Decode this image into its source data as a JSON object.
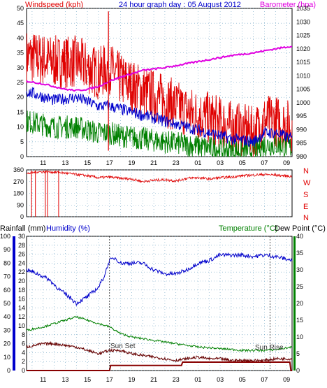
{
  "colors": {
    "windspeed": "#e00000",
    "gust_avg": "#0000cc",
    "wind_avg": "#008000",
    "barometer": "#e000e0",
    "direction": "#e00000",
    "humidity": "#0000cc",
    "temperature": "#008000",
    "dewpoint": "#660000",
    "rainfall": "#880000",
    "title": "#0000cc",
    "grid": "#6aa0c0",
    "rain_axis": "#0000cc",
    "temp_axis": "#008000"
  },
  "header": {
    "left": "Windspeed (kph)",
    "center": "24 hour graph day : 05 August 2012",
    "right": "Barometer (hpa)"
  },
  "direction_letters": [
    "N",
    "W",
    "S",
    "E",
    "N"
  ],
  "bottom_header": {
    "rainfall": "Rainfall (mm)",
    "humidity": "Humidity (%)",
    "temperature": "Temperature (°C)",
    "dewpoint": "Dew Point (°C)"
  },
  "annotations": {
    "sunset": "Sun Set",
    "sunrise": "Sun Rise"
  },
  "chart_data": [
    {
      "type": "line",
      "name": "wind_barometer",
      "x_ticks": [
        "11",
        "13",
        "15",
        "17",
        "19",
        "21",
        "23",
        "01",
        "03",
        "05",
        "07",
        "09"
      ],
      "x_range_hours": [
        9.5,
        33.5
      ],
      "left_axis": {
        "label": "Windspeed (kph)",
        "ylim": [
          0,
          50
        ],
        "ticks": [
          0,
          5,
          10,
          15,
          20,
          25,
          30,
          35,
          40,
          45,
          50
        ]
      },
      "right_axis": {
        "label": "Barometer (hpa)",
        "ylim": [
          980,
          1035
        ],
        "ticks": [
          980,
          985,
          990,
          995,
          1000,
          1005,
          1010,
          1015,
          1020,
          1025,
          1030,
          1035
        ]
      },
      "series": [
        {
          "key": "gust",
          "hours": [
            9.5,
            12,
            14,
            16,
            17,
            18,
            20,
            22,
            24,
            26,
            28,
            30,
            31,
            32,
            33.5
          ],
          "values": [
            34,
            32,
            32,
            28,
            30,
            26,
            22,
            19,
            15,
            13,
            10,
            8,
            12,
            12,
            10
          ]
        },
        {
          "key": "gust_avg",
          "hours": [
            9.5,
            12,
            14,
            16,
            17,
            18,
            20,
            22,
            24,
            26,
            28,
            30,
            31,
            32,
            33.5
          ],
          "values": [
            22,
            19,
            20,
            17,
            17,
            16,
            14,
            12,
            10,
            8,
            6,
            5,
            8,
            8,
            6
          ]
        },
        {
          "key": "wind_avg",
          "hours": [
            9.5,
            12,
            14,
            16,
            17,
            18,
            20,
            22,
            24,
            26,
            28,
            30,
            31,
            32,
            33.5
          ],
          "values": [
            12,
            10,
            10,
            8,
            8,
            7,
            6,
            5,
            4,
            3,
            2,
            2,
            4,
            4,
            3
          ]
        },
        {
          "key": "barometer",
          "hours": [
            9.5,
            11,
            13,
            14,
            15,
            16,
            17,
            18,
            20,
            22,
            24,
            26,
            28,
            30,
            32,
            33.5
          ],
          "values": [
            1008,
            1007,
            1005,
            1004.5,
            1005,
            1006,
            1008,
            1009.5,
            1012,
            1013,
            1014.5,
            1016,
            1017.5,
            1018.5,
            1020,
            1021
          ]
        }
      ]
    },
    {
      "type": "line",
      "name": "wind_direction",
      "ylim": [
        0,
        360
      ],
      "ticks": [
        0,
        90,
        180,
        270,
        360
      ],
      "series": [
        {
          "key": "direction",
          "hours": [
            9.5,
            10.5,
            11.5,
            12.5,
            13.5,
            15,
            16,
            17,
            18,
            19,
            20,
            21,
            22,
            23,
            24,
            25,
            26,
            27,
            28,
            29,
            30,
            31,
            32,
            33.5
          ],
          "values": [
            330,
            345,
            345,
            340,
            330,
            315,
            300,
            305,
            295,
            290,
            270,
            280,
            285,
            275,
            295,
            300,
            290,
            300,
            305,
            315,
            320,
            325,
            320,
            310
          ]
        }
      ]
    },
    {
      "type": "line",
      "name": "temp_humidity_rain",
      "rain_axis": {
        "label": "Rainfall (mm)",
        "ylim": [
          0,
          100
        ],
        "ticks": [
          0,
          10,
          20,
          30,
          40,
          50,
          60,
          70,
          80,
          90,
          100
        ]
      },
      "humidity_axis": {
        "label": "Humidity (%)",
        "ylim": [
          0,
          30
        ],
        "ticks": [
          0,
          2,
          4,
          6,
          8,
          10,
          12,
          14,
          16,
          18,
          20,
          22,
          24,
          26,
          28,
          30
        ]
      },
      "temp_axis": {
        "label": "Temperature (°C)",
        "ylim": [
          0,
          40
        ],
        "ticks": [
          0,
          5,
          10,
          15,
          20,
          25,
          30,
          35,
          40
        ]
      },
      "series": [
        {
          "key": "humidity",
          "hours": [
            9.5,
            10.5,
            11.5,
            12.5,
            13.5,
            14,
            15,
            16,
            16.5,
            17,
            17.5,
            18,
            19,
            20,
            21,
            22,
            23,
            24,
            25,
            26,
            27,
            28,
            29,
            30,
            31,
            32,
            33.5
          ],
          "values": [
            75,
            72,
            68,
            60,
            54,
            50,
            55,
            62,
            70,
            82,
            84,
            80,
            80,
            80,
            75,
            72,
            72,
            75,
            80,
            82,
            86,
            86,
            86,
            85,
            86,
            85,
            82
          ]
        },
        {
          "key": "temperature",
          "hours": [
            9.5,
            11,
            12,
            13,
            14,
            15,
            16,
            17,
            18,
            19,
            20,
            21,
            22,
            23,
            24,
            25,
            26,
            27,
            28,
            29,
            30,
            31,
            32,
            33.5
          ],
          "values": [
            12,
            13,
            14,
            15,
            16,
            15,
            14,
            13,
            11,
            10,
            9.5,
            9,
            8.5,
            8,
            7.5,
            7,
            6.8,
            6.5,
            6.3,
            6,
            6,
            6,
            6.2,
            7
          ]
        },
        {
          "key": "dewpoint",
          "hours": [
            9.5,
            11,
            12,
            13,
            14,
            15,
            16,
            17,
            18,
            19,
            20,
            21,
            22,
            23,
            24,
            25,
            26,
            27,
            28,
            29,
            30,
            31,
            32,
            33.5
          ],
          "values": [
            7,
            8,
            8,
            7.5,
            7,
            6,
            5,
            6,
            6,
            5,
            4.5,
            4,
            3.5,
            3,
            3.5,
            4,
            3.5,
            3.5,
            3,
            3,
            3,
            3,
            3.5,
            3.5
          ]
        },
        {
          "key": "rainfall",
          "hours": [
            9.5,
            17,
            17.1,
            23.5,
            23.6,
            33.3,
            33.4,
            33.5
          ],
          "values": [
            0,
            0,
            1.5,
            1.5,
            2.5,
            2.5,
            0,
            0
          ]
        }
      ],
      "sunset_hour": 17.0,
      "sunrise_hour": 31.5
    }
  ]
}
